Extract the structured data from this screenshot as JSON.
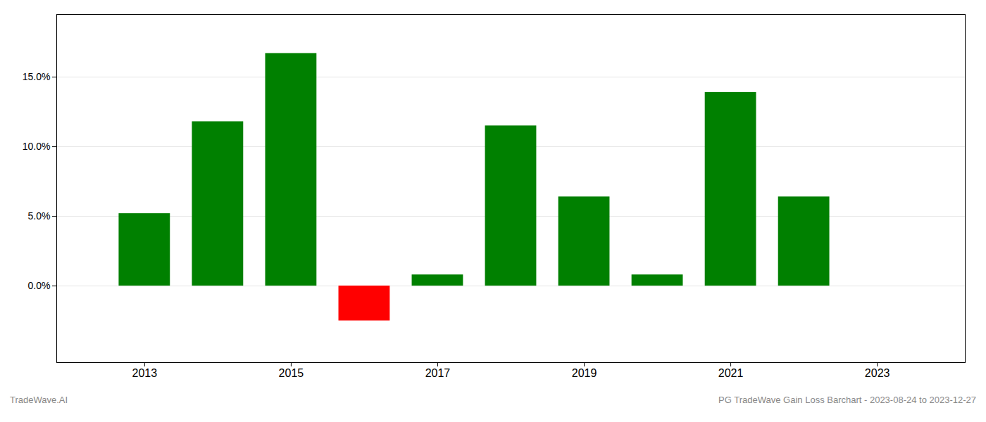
{
  "chart_data": {
    "type": "bar",
    "title": "PG TradeWave Gain Loss Barchart - 2023-08-24 to 2023-12-27",
    "annotations": [
      "TradeWave.AI"
    ],
    "x": [
      2013,
      2014,
      2015,
      2016,
      2017,
      2018,
      2019,
      2020,
      2021,
      2022
    ],
    "values": [
      0.052,
      0.118,
      0.167,
      -0.025,
      0.008,
      0.115,
      0.064,
      0.008,
      0.139,
      0.064
    ],
    "colors": [
      "#008000",
      "#008000",
      "#008000",
      "#ff0000",
      "#008000",
      "#008000",
      "#008000",
      "#008000",
      "#008000",
      "#008000"
    ],
    "xlim": [
      2011.8,
      2024.2
    ],
    "xticks": [
      2013,
      2015,
      2017,
      2019,
      2021,
      2023
    ],
    "ylim": [
      -0.055,
      0.195
    ],
    "yticks": [
      {
        "value": 0.0,
        "label": "0.0%"
      },
      {
        "value": 0.05,
        "label": "5.0%"
      },
      {
        "value": 0.1,
        "label": "10.0%"
      },
      {
        "value": 0.15,
        "label": "15.0%"
      }
    ],
    "grid": true
  }
}
